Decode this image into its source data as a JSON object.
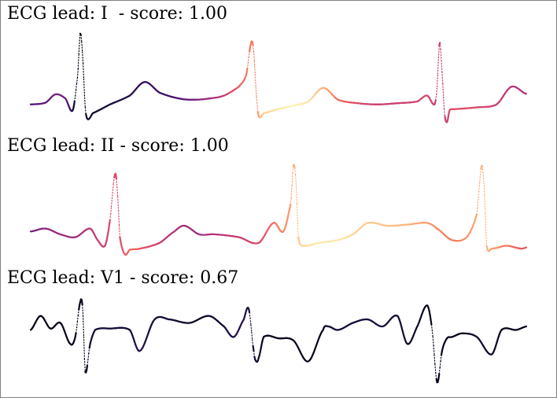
{
  "chart_data": [
    {
      "type": "line",
      "title": "ECG lead: I  - score: 1.00",
      "xlabel": "",
      "ylabel": "",
      "grid": false,
      "colormap": "magma",
      "series": [
        {
          "x": [
            0,
            0.03,
            0.05,
            0.07,
            0.085,
            0.095,
            0.1,
            0.105,
            0.11,
            0.115,
            0.125,
            0.16,
            0.2,
            0.23,
            0.26,
            0.3,
            0.33,
            0.36,
            0.39,
            0.42,
            0.435,
            0.445,
            0.45,
            0.455,
            0.46,
            0.47,
            0.5,
            0.53,
            0.56,
            0.59,
            0.62,
            0.66,
            0.7,
            0.74,
            0.78,
            0.8,
            0.815,
            0.82,
            0.825,
            0.83,
            0.835,
            0.84,
            0.845,
            0.855,
            0.9,
            0.94,
            0.97,
            1.0
          ],
          "y": [
            0.0,
            0.03,
            0.17,
            0.1,
            -0.1,
            0.5,
            1.2,
            0.8,
            -0.05,
            -0.25,
            -0.15,
            0.0,
            0.15,
            0.38,
            0.2,
            0.1,
            0.08,
            0.1,
            0.15,
            0.3,
            0.5,
            1.05,
            0.9,
            0.2,
            -0.2,
            -0.15,
            -0.08,
            -0.02,
            0.05,
            0.28,
            0.08,
            0.02,
            0.0,
            0.02,
            0.05,
            0.15,
            0.0,
            0.3,
            1.05,
            0.55,
            -0.15,
            -0.3,
            -0.1,
            -0.08,
            -0.05,
            0.0,
            0.3,
            0.18
          ],
          "c": [
            0.25,
            0.3,
            0.35,
            0.35,
            0.1,
            0.05,
            0.02,
            0.02,
            0.05,
            0.1,
            0.1,
            0.12,
            0.15,
            0.2,
            0.2,
            0.25,
            0.35,
            0.45,
            0.55,
            0.65,
            0.72,
            0.72,
            0.72,
            0.75,
            0.8,
            0.9,
            0.95,
            0.98,
            0.95,
            0.85,
            0.7,
            0.6,
            0.55,
            0.55,
            0.58,
            0.6,
            0.55,
            0.55,
            0.55,
            0.55,
            0.55,
            0.55,
            0.6,
            0.62,
            0.6,
            0.55,
            0.5,
            0.5
          ]
        }
      ],
      "ylim": [
        -0.35,
        1.25
      ]
    },
    {
      "type": "line",
      "title": "ECG lead: II - score: 1.00",
      "xlabel": "",
      "ylabel": "",
      "grid": false,
      "colormap": "magma",
      "series": [
        {
          "x": [
            0,
            0.03,
            0.06,
            0.09,
            0.12,
            0.135,
            0.15,
            0.16,
            0.17,
            0.175,
            0.18,
            0.19,
            0.2,
            0.22,
            0.26,
            0.29,
            0.31,
            0.34,
            0.37,
            0.42,
            0.46,
            0.49,
            0.51,
            0.525,
            0.53,
            0.535,
            0.54,
            0.55,
            0.58,
            0.62,
            0.65,
            0.68,
            0.72,
            0.76,
            0.8,
            0.82,
            0.85,
            0.88,
            0.9,
            0.91,
            0.915,
            0.92,
            0.93,
            0.96,
            0.99,
            1.0
          ],
          "y": [
            0.0,
            0.05,
            -0.05,
            -0.1,
            0.05,
            -0.15,
            -0.25,
            0.2,
            1.0,
            0.7,
            -0.1,
            -0.4,
            -0.32,
            -0.3,
            -0.2,
            0.0,
            0.1,
            -0.05,
            -0.05,
            -0.1,
            -0.2,
            0.15,
            0.0,
            0.5,
            1.15,
            0.9,
            -0.1,
            -0.25,
            -0.2,
            -0.15,
            -0.05,
            0.15,
            0.1,
            0.12,
            0.15,
            0.05,
            -0.15,
            -0.1,
            0.3,
            1.15,
            0.75,
            -0.25,
            -0.3,
            -0.25,
            -0.3,
            -0.28
          ],
          "c": [
            0.35,
            0.4,
            0.45,
            0.45,
            0.5,
            0.55,
            0.55,
            0.6,
            0.6,
            0.6,
            0.62,
            0.65,
            0.68,
            0.65,
            0.55,
            0.5,
            0.45,
            0.45,
            0.5,
            0.55,
            0.6,
            0.7,
            0.75,
            0.8,
            0.85,
            0.85,
            0.88,
            0.92,
            0.96,
            0.96,
            0.92,
            0.9,
            0.88,
            0.85,
            0.8,
            0.75,
            0.72,
            0.78,
            0.82,
            0.85,
            0.85,
            0.85,
            0.8,
            0.72,
            0.65,
            0.65
          ]
        }
      ],
      "ylim": [
        -0.45,
        1.2
      ]
    },
    {
      "type": "line",
      "title": "ECG lead: V1 - score: 0.67",
      "xlabel": "",
      "ylabel": "",
      "grid": false,
      "colormap": "magma",
      "series": [
        {
          "x": [
            0,
            0.02,
            0.04,
            0.06,
            0.08,
            0.09,
            0.1,
            0.105,
            0.11,
            0.12,
            0.13,
            0.16,
            0.2,
            0.22,
            0.25,
            0.28,
            0.32,
            0.36,
            0.39,
            0.41,
            0.43,
            0.44,
            0.45,
            0.455,
            0.46,
            0.47,
            0.5,
            0.53,
            0.56,
            0.59,
            0.6,
            0.62,
            0.65,
            0.68,
            0.71,
            0.74,
            0.76,
            0.78,
            0.8,
            0.81,
            0.82,
            0.83,
            0.84,
            0.85,
            0.87,
            0.9,
            0.93,
            0.95,
            0.98,
            1.0
          ],
          "y": [
            0.0,
            0.2,
            0.02,
            0.1,
            -0.2,
            -0.1,
            0.4,
            0.3,
            -0.6,
            -0.2,
            0.0,
            0.02,
            0.0,
            -0.3,
            0.15,
            0.15,
            0.1,
            0.2,
            0.05,
            -0.1,
            0.15,
            0.3,
            -0.3,
            -0.45,
            -0.4,
            -0.1,
            -0.12,
            -0.15,
            -0.45,
            0.0,
            0.05,
            0.0,
            0.1,
            0.15,
            0.05,
            0.2,
            -0.2,
            0.05,
            0.35,
            0.0,
            -0.75,
            -0.3,
            -0.12,
            -0.1,
            -0.05,
            -0.1,
            -0.35,
            0.0,
            0.0,
            0.05
          ],
          "c": [
            0.05,
            0.05,
            0.05,
            0.05,
            0.05,
            0.05,
            0.05,
            0.05,
            0.05,
            0.08,
            0.1,
            0.1,
            0.1,
            0.15,
            0.1,
            0.1,
            0.08,
            0.08,
            0.1,
            0.15,
            0.15,
            0.12,
            0.1,
            0.1,
            0.1,
            0.05,
            0.05,
            0.05,
            0.05,
            0.05,
            0.08,
            0.1,
            0.1,
            0.12,
            0.12,
            0.1,
            0.08,
            0.08,
            0.05,
            0.05,
            0.05,
            0.05,
            0.05,
            0.05,
            0.05,
            0.08,
            0.08,
            0.05,
            0.05,
            0.05
          ]
        }
      ],
      "ylim": [
        -0.85,
        0.5
      ]
    }
  ]
}
